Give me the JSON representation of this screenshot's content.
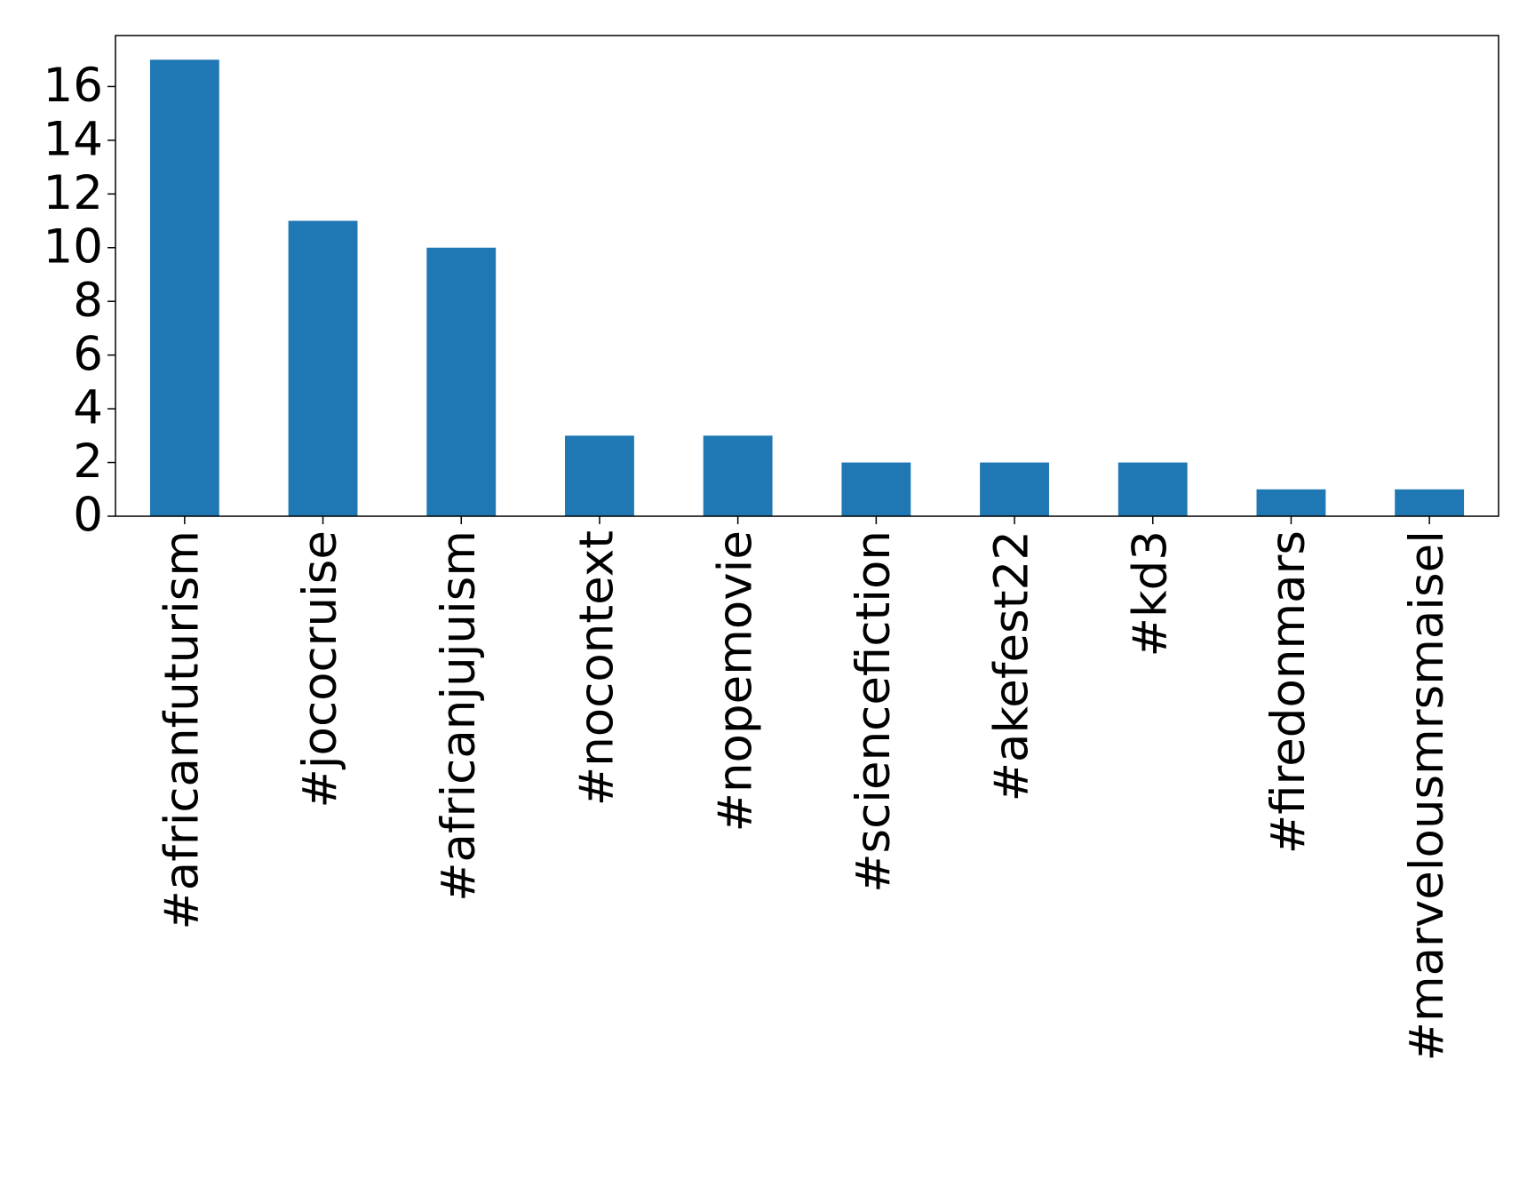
{
  "chart_data": {
    "type": "bar",
    "categories": [
      "#africanfuturism",
      "#jococruise",
      "#africanjujuism",
      "#nocontext",
      "#nopemovie",
      "#sciencefiction",
      "#akefest22",
      "#kd3",
      "#firedonmars",
      "#marvelousmrsmaisel"
    ],
    "values": [
      17,
      11,
      10,
      3,
      3,
      2,
      2,
      2,
      1,
      1
    ],
    "color": "#1f77b4",
    "ylim": [
      0,
      17.9
    ],
    "yticks": [
      0,
      2,
      4,
      6,
      8,
      10,
      12,
      14,
      16
    ],
    "grid": false
  }
}
